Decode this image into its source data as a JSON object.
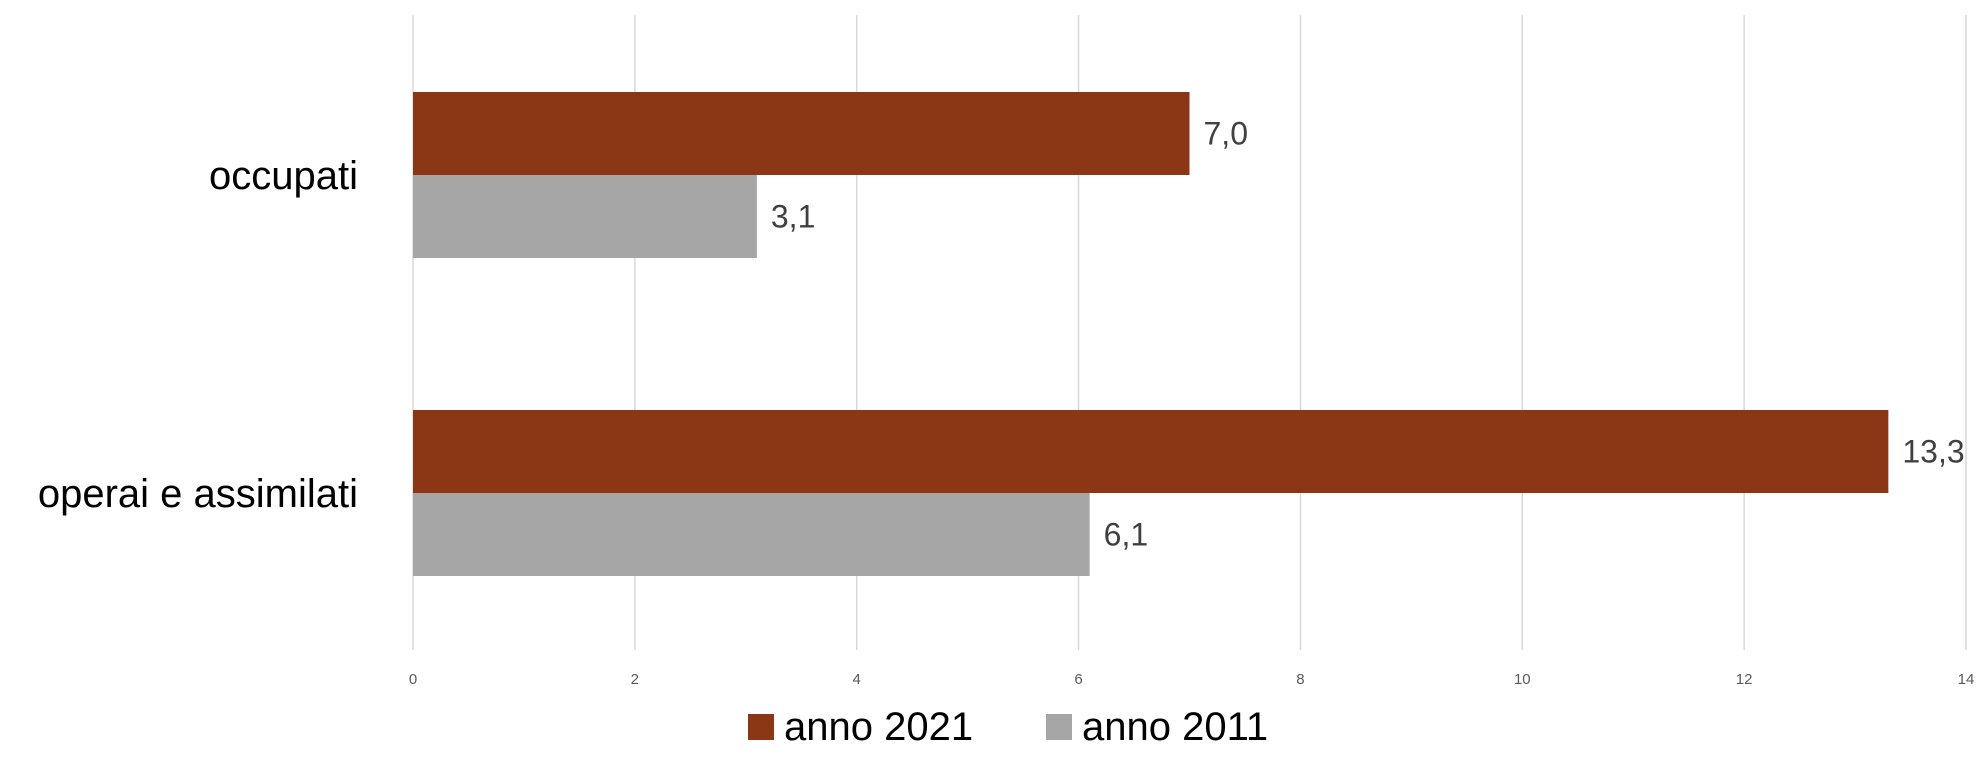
{
  "chart_data": {
    "type": "bar",
    "orientation": "horizontal",
    "title": "",
    "xlabel": "",
    "ylabel": "",
    "categories": [
      "occupati",
      "operai e assimilati"
    ],
    "series": [
      {
        "name": "anno 2021",
        "color": "#8B3615",
        "values": [
          7.0,
          13.3
        ],
        "labels": [
          "7,0",
          "13,3"
        ]
      },
      {
        "name": "anno 2011",
        "color": "#A6A6A6",
        "values": [
          3.1,
          6.1
        ],
        "labels": [
          "3,1",
          "6,1"
        ]
      }
    ],
    "xlim": [
      0,
      14
    ],
    "xticks": [
      0,
      2,
      4,
      6,
      8,
      10,
      12,
      14
    ],
    "grid": true,
    "legend_position": "bottom"
  }
}
